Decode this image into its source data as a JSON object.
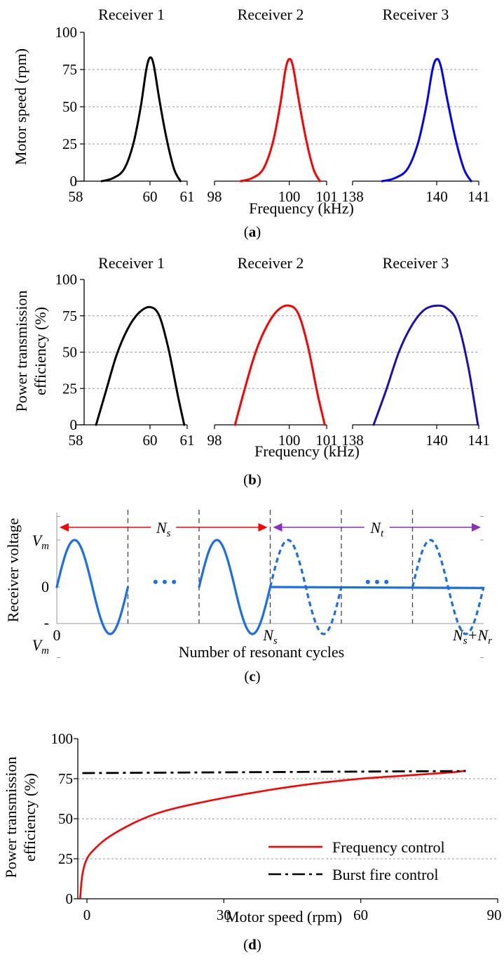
{
  "chart_data": [
    {
      "panel": "(a)",
      "type": "line",
      "ylabel": "Motor speed (rpm)",
      "xlabel": "Frequency (kHz)",
      "ylim": [
        0,
        100
      ],
      "yticks": [
        "0",
        "25",
        "50",
        "75",
        "100"
      ],
      "grid": "horizontal dashed at 25, 50, 75",
      "groups": [
        {
          "header": "Receiver 1",
          "color": "#000000",
          "xticks": [
            "58",
            "60",
            "61"
          ],
          "xlim": [
            58,
            61
          ],
          "x": [
            58.7,
            59.0,
            59.3,
            59.55,
            59.75,
            59.9,
            60.0,
            60.1,
            60.25,
            60.45,
            60.65,
            60.82
          ],
          "y": [
            0,
            2,
            8,
            25,
            50,
            75,
            83,
            78,
            55,
            28,
            8,
            0
          ]
        },
        {
          "header": "Receiver 2",
          "color": "#ff0000",
          "xticks": [
            "98",
            "100",
            "101"
          ],
          "xlim": [
            98,
            101
          ],
          "x": [
            98.7,
            99.0,
            99.3,
            99.55,
            99.75,
            99.9,
            100.0,
            100.1,
            100.25,
            100.45,
            100.65,
            100.82
          ],
          "y": [
            0,
            2,
            8,
            25,
            50,
            75,
            82,
            77,
            55,
            28,
            8,
            0
          ]
        },
        {
          "header": "Receiver 3",
          "color": "#0000ff",
          "xticks": [
            "138",
            "140",
            "141"
          ],
          "xlim": [
            138,
            141
          ],
          "x": [
            138.7,
            139.0,
            139.3,
            139.55,
            139.75,
            139.9,
            140.0,
            140.1,
            140.25,
            140.45,
            140.65,
            140.82
          ],
          "y": [
            0,
            2,
            8,
            25,
            50,
            75,
            82,
            77,
            55,
            28,
            8,
            0
          ]
        }
      ]
    },
    {
      "panel": "(b)",
      "type": "line",
      "ylabel": "Power transmission efficiency (%)",
      "ylabel_lines": [
        "Power transmission",
        "efficiency (%)"
      ],
      "xlabel": "Frequency (kHz)",
      "ylim": [
        0,
        100
      ],
      "yticks": [
        "0",
        "25",
        "50",
        "75",
        "100"
      ],
      "grid": "horizontal dashed at 25, 50, 75",
      "groups": [
        {
          "header": "Receiver 1",
          "color": "#000000",
          "xticks": [
            "58",
            "60",
            "61"
          ],
          "xlim": [
            58,
            61
          ],
          "x": [
            58.55,
            58.8,
            59.1,
            59.4,
            59.7,
            60.0,
            60.25,
            60.5,
            60.75,
            60.92
          ],
          "y": [
            0,
            22,
            48,
            66,
            77,
            81,
            75,
            52,
            20,
            0
          ]
        },
        {
          "header": "Receiver 2",
          "color": "#ff0000",
          "xticks": [
            "98",
            "100",
            "101"
          ],
          "xlim": [
            98,
            101
          ],
          "x": [
            98.55,
            98.8,
            99.1,
            99.4,
            99.7,
            100.0,
            100.25,
            100.5,
            100.75,
            100.95
          ],
          "y": [
            0,
            24,
            50,
            68,
            79,
            82,
            76,
            54,
            22,
            0
          ]
        },
        {
          "header": "Receiver 3",
          "color": "#1a10b0",
          "xticks": [
            "138",
            "140",
            "141"
          ],
          "xlim": [
            138,
            141
          ],
          "x": [
            138.5,
            138.8,
            139.1,
            139.4,
            139.7,
            140.0,
            140.25,
            140.5,
            140.75,
            140.98
          ],
          "y": [
            0,
            24,
            50,
            68,
            79,
            82,
            80,
            70,
            40,
            0
          ]
        }
      ]
    },
    {
      "panel": "(c)",
      "type": "line",
      "ylabel": "Receiver voltage",
      "xlabel": "Number of resonant cycles",
      "yticks": [
        "V",
        "0",
        "-",
        "V"
      ],
      "ytick_subscripts": [
        "m",
        "",
        "",
        "m"
      ],
      "xticks_main": [
        "0",
        "N",
        "N",
        "+N"
      ],
      "xticks_sub": [
        "",
        "s",
        "s",
        "r"
      ],
      "ylim": [
        -1.4,
        1.4
      ],
      "xlim": [
        0,
        6
      ],
      "line_color": "#1a6fe8",
      "arrows": [
        {
          "label_main": "N",
          "label_sub": "s",
          "color": "#ff0000",
          "from": 0,
          "to": 3
        },
        {
          "label_main": "N",
          "label_sub": "t",
          "color": "#8b2fc9",
          "from": 3,
          "to": 6
        }
      ],
      "ellipsis": [
        "•  •  •",
        "•  •  •"
      ],
      "segments": [
        {
          "style": "solid",
          "x_start": 0,
          "cycles": 1
        },
        {
          "style": "solid",
          "x_start": 2,
          "cycles": 1
        },
        {
          "style": "dashed",
          "x_start": 3,
          "cycles": 1
        },
        {
          "style": "dashed",
          "x_start": 5,
          "cycles": 1
        }
      ],
      "flat_line": {
        "x": [
          3,
          6
        ],
        "y": [
          0,
          -0.02
        ]
      },
      "dividers_x": [
        1,
        2,
        3,
        4,
        5
      ]
    },
    {
      "panel": "(d)",
      "type": "line",
      "ylabel": "Power transmission efficiency (%)",
      "ylabel_lines": [
        "Power transmission",
        "efficiency (%)"
      ],
      "xlabel": "Motor speed (rpm)",
      "xlim": [
        -2,
        90
      ],
      "ylim": [
        0,
        100
      ],
      "xticks": [
        "0",
        "30",
        "60",
        "90"
      ],
      "yticks": [
        "0",
        "25",
        "50",
        "75",
        "100"
      ],
      "grid": "horizontal dashed at 25, 50, 75",
      "legend": "lower-right",
      "series": [
        {
          "name": "Frequency control",
          "color": "#ff0000",
          "dash": "solid",
          "x": [
            -1.5,
            -1,
            0,
            2,
            5,
            10,
            15,
            20,
            30,
            40,
            50,
            60,
            70,
            80,
            83
          ],
          "y": [
            0,
            15,
            25,
            32,
            39,
            47,
            53,
            57,
            63,
            68,
            72,
            75,
            77,
            79,
            80
          ]
        },
        {
          "name": "Burst fire control",
          "color": "#000000",
          "dash": "dashdot",
          "x": [
            -1,
            83
          ],
          "y": [
            78.5,
            79.8
          ]
        }
      ]
    }
  ],
  "captions": [
    "(a)",
    "(b)",
    "(c)",
    "(d)"
  ]
}
